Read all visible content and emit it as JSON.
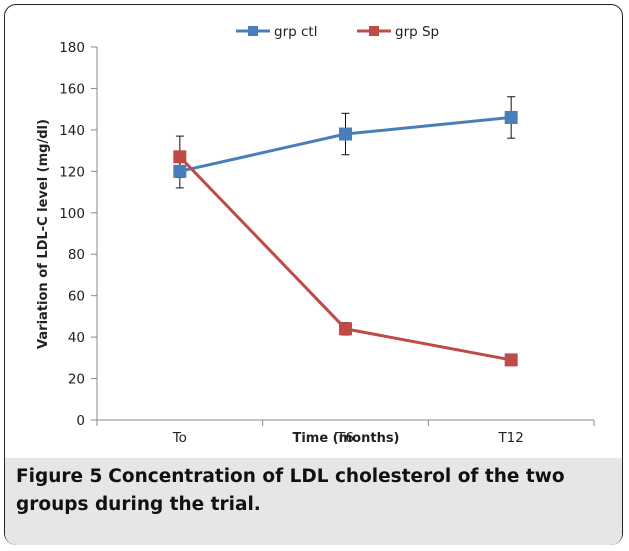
{
  "chart_data": {
    "type": "line",
    "categories": [
      "To",
      "T6",
      "T12"
    ],
    "xlabel": "Time (months)",
    "ylabel": "Variation of LDL-C level (mg/dl)",
    "ylim": [
      0,
      180
    ],
    "yticks": [
      0,
      20,
      40,
      60,
      80,
      100,
      120,
      140,
      160,
      180
    ],
    "grid": false,
    "legend_position": "top",
    "series": [
      {
        "name": "grp ctl",
        "color": "#4a7ebb",
        "values": [
          120,
          138,
          146
        ],
        "errors": [
          8,
          10,
          10
        ]
      },
      {
        "name": "grp Sp",
        "color": "#be4b48",
        "values": [
          127,
          44,
          29
        ],
        "errors": [
          10,
          3,
          0
        ]
      }
    ]
  },
  "caption": {
    "label": "Figure 5",
    "text": "Concentration of LDL cholesterol of the two groups during the trial."
  }
}
